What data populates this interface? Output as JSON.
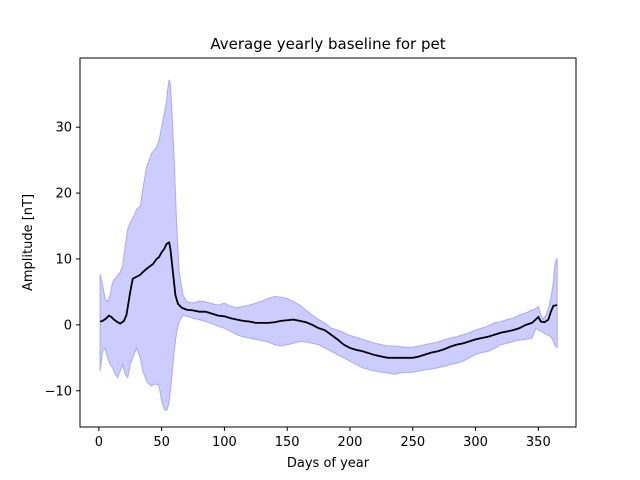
{
  "chart_data": {
    "type": "line",
    "title": "Average yearly baseline for pet",
    "xlabel": "Days of year",
    "ylabel": "Amplitude [nT]",
    "xlim": [
      -15,
      380
    ],
    "ylim": [
      -15.5,
      40.5
    ],
    "x_ticks": [
      0,
      50,
      100,
      150,
      200,
      250,
      300,
      350
    ],
    "y_ticks": [
      -10,
      0,
      10,
      20,
      30
    ],
    "x_tick_labels": [
      "0",
      "50",
      "100",
      "150",
      "200",
      "250",
      "300",
      "350"
    ],
    "y_tick_labels": [
      "−10",
      "0",
      "10",
      "20",
      "30"
    ],
    "grid": false,
    "legend": "none",
    "colors": {
      "mean_line": "#000000",
      "band_fill": "#ccccff",
      "band_edge": "#a8a8ff"
    },
    "series": [
      {
        "kind": "line",
        "x": [
          1,
          3,
          6,
          8,
          10,
          12,
          15,
          17,
          20,
          22,
          25,
          27,
          30,
          33,
          35,
          38,
          40,
          43,
          46,
          48,
          50,
          52,
          54,
          56,
          57,
          59,
          61,
          63,
          66,
          70,
          75,
          80,
          85,
          90,
          95,
          100,
          105,
          110,
          115,
          120,
          125,
          130,
          135,
          140,
          145,
          150,
          155,
          160,
          165,
          170,
          175,
          180,
          185,
          190,
          195,
          200,
          205,
          210,
          215,
          220,
          225,
          230,
          235,
          240,
          245,
          250,
          255,
          260,
          265,
          270,
          275,
          280,
          285,
          290,
          295,
          300,
          305,
          310,
          315,
          320,
          325,
          330,
          335,
          340,
          345,
          350,
          352,
          355,
          358,
          360,
          362,
          365
        ],
        "y": [
          0.5,
          0.6,
          1.0,
          1.4,
          1.2,
          0.8,
          0.4,
          0.2,
          0.6,
          1.5,
          5.0,
          7.0,
          7.3,
          7.6,
          8.0,
          8.5,
          8.8,
          9.2,
          10.0,
          10.3,
          11.0,
          11.5,
          12.3,
          12.5,
          11.5,
          8.0,
          4.5,
          3.2,
          2.6,
          2.3,
          2.2,
          2.0,
          2.0,
          1.7,
          1.4,
          1.3,
          1.0,
          0.8,
          0.6,
          0.5,
          0.3,
          0.3,
          0.3,
          0.4,
          0.6,
          0.7,
          0.8,
          0.6,
          0.4,
          0.0,
          -0.5,
          -0.8,
          -1.5,
          -2.2,
          -3.0,
          -3.5,
          -3.8,
          -4.0,
          -4.3,
          -4.6,
          -4.8,
          -5.0,
          -5.0,
          -5.0,
          -5.0,
          -5.0,
          -4.8,
          -4.5,
          -4.2,
          -4.0,
          -3.7,
          -3.3,
          -3.0,
          -2.8,
          -2.5,
          -2.2,
          -2.0,
          -1.8,
          -1.5,
          -1.2,
          -1.0,
          -0.8,
          -0.5,
          0.0,
          0.3,
          1.2,
          0.5,
          0.4,
          0.8,
          2.0,
          2.9,
          3.0
        ]
      },
      {
        "kind": "band",
        "x": [
          1,
          3,
          5,
          7,
          9,
          11,
          13,
          15,
          17,
          19,
          21,
          23,
          25,
          28,
          30,
          33,
          35,
          38,
          40,
          42,
          44,
          46,
          48,
          50,
          52,
          54,
          55,
          56,
          57,
          58,
          60,
          62,
          64,
          67,
          70,
          75,
          80,
          85,
          90,
          95,
          100,
          105,
          110,
          115,
          120,
          125,
          130,
          135,
          140,
          145,
          150,
          155,
          160,
          165,
          170,
          175,
          180,
          185,
          190,
          195,
          200,
          205,
          210,
          215,
          220,
          225,
          230,
          235,
          240,
          245,
          250,
          255,
          260,
          265,
          270,
          275,
          280,
          285,
          290,
          295,
          300,
          305,
          310,
          315,
          320,
          325,
          330,
          335,
          340,
          345,
          348,
          350,
          352,
          354,
          356,
          358,
          360,
          362,
          363,
          364,
          365
        ],
        "upper": [
          7.7,
          6.0,
          4.0,
          3.5,
          4.5,
          6.5,
          7.0,
          7.5,
          8.0,
          9.0,
          12.0,
          14.5,
          15.5,
          16.5,
          17.5,
          18.0,
          20.5,
          24.0,
          25.0,
          26.0,
          26.5,
          27.0,
          28.0,
          30.0,
          32.0,
          34.0,
          36.0,
          37.2,
          36.5,
          33.0,
          25.0,
          15.0,
          8.0,
          4.5,
          3.5,
          3.3,
          3.6,
          3.5,
          3.2,
          3.0,
          3.3,
          2.8,
          2.6,
          2.8,
          3.0,
          3.3,
          3.6,
          4.0,
          4.3,
          4.2,
          4.0,
          3.5,
          3.0,
          2.2,
          1.5,
          0.8,
          0.3,
          -0.5,
          -0.8,
          -1.2,
          -1.6,
          -1.9,
          -2.2,
          -2.5,
          -2.8,
          -3.0,
          -3.2,
          -3.2,
          -3.3,
          -3.4,
          -3.4,
          -3.2,
          -3.0,
          -2.8,
          -2.6,
          -2.3,
          -2.0,
          -1.8,
          -1.5,
          -1.2,
          -0.8,
          -0.5,
          -0.2,
          0.3,
          0.5,
          0.8,
          1.0,
          1.5,
          1.8,
          2.2,
          2.5,
          2.8,
          1.5,
          0.8,
          1.5,
          2.5,
          4.0,
          6.5,
          8.8,
          9.8,
          10.0
        ],
        "lower": [
          -7.0,
          -4.0,
          -3.5,
          -5.0,
          -6.0,
          -6.5,
          -7.5,
          -8.0,
          -7.0,
          -6.0,
          -7.5,
          -8.0,
          -6.0,
          -4.5,
          -3.5,
          -5.0,
          -7.0,
          -8.5,
          -9.0,
          -9.3,
          -9.0,
          -9.0,
          -9.3,
          -11.5,
          -12.8,
          -13.0,
          -12.5,
          -11.5,
          -10.0,
          -8.0,
          -4.0,
          -1.0,
          0.5,
          1.5,
          1.3,
          1.0,
          0.8,
          0.5,
          0.2,
          -0.2,
          -0.5,
          -1.0,
          -1.5,
          -1.8,
          -2.0,
          -2.2,
          -2.4,
          -2.6,
          -3.0,
          -3.2,
          -3.0,
          -2.8,
          -2.5,
          -2.6,
          -2.8,
          -3.0,
          -3.5,
          -4.0,
          -4.5,
          -5.0,
          -5.5,
          -6.0,
          -6.5,
          -6.8,
          -7.0,
          -7.2,
          -7.3,
          -7.5,
          -7.3,
          -7.2,
          -7.2,
          -7.0,
          -6.8,
          -6.7,
          -6.5,
          -6.3,
          -6.0,
          -5.8,
          -5.5,
          -5.0,
          -4.5,
          -4.2,
          -4.0,
          -3.6,
          -3.0,
          -2.8,
          -2.5,
          -2.3,
          -2.2,
          -2.0,
          -0.5,
          -0.8,
          -1.0,
          -1.2,
          -1.4,
          -1.6,
          -1.8,
          -2.5,
          -3.0,
          -3.3,
          -3.4
        ]
      }
    ]
  }
}
